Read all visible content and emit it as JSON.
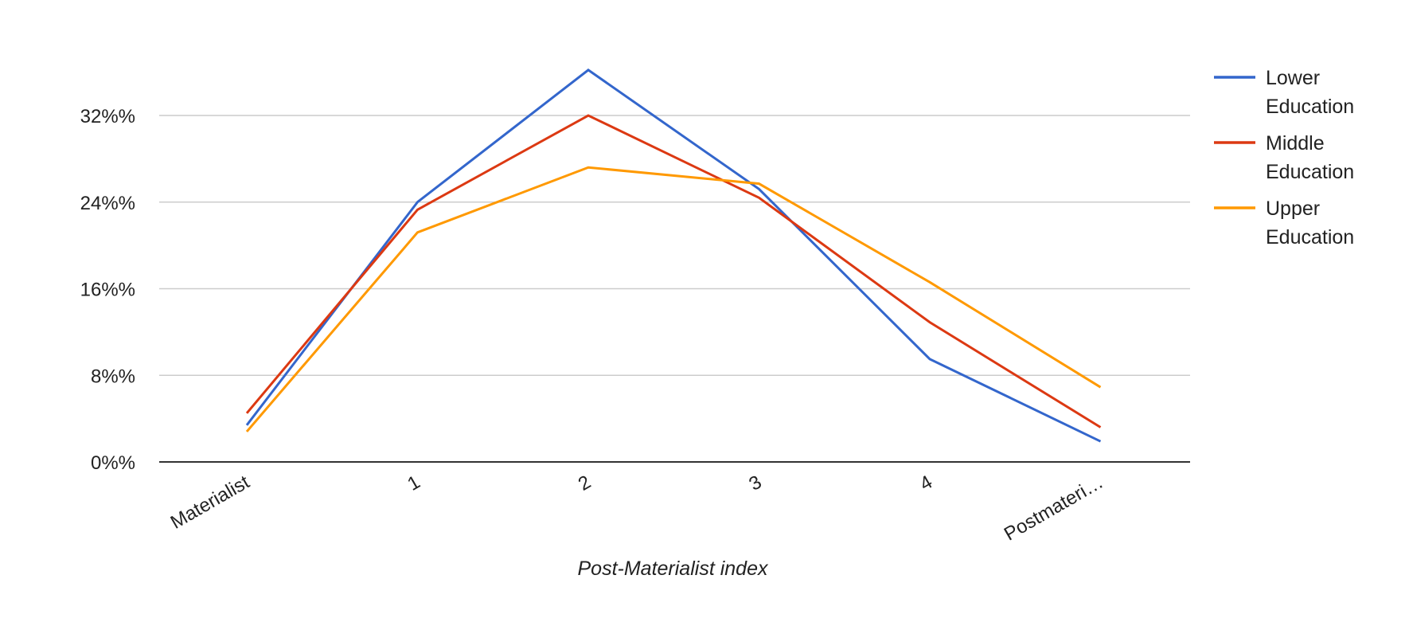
{
  "chart_data": {
    "type": "line",
    "title": "",
    "xlabel": "Post-Materialist index",
    "ylabel": "",
    "categories": [
      "Materialist",
      "1",
      "2",
      "3",
      "4",
      "Postmateri…"
    ],
    "y_ticks": [
      "0%%",
      "8%%",
      "16%%",
      "24%%",
      "32%%"
    ],
    "ylim": [
      0,
      36
    ],
    "grid": true,
    "legend_position": "right",
    "series": [
      {
        "name": "Lower Education",
        "color": "#3366cc",
        "values": [
          3.4,
          24.0,
          36.2,
          25.2,
          9.5,
          1.9
        ]
      },
      {
        "name": "Middle Education",
        "color": "#dc3912",
        "values": [
          4.5,
          23.3,
          32.0,
          24.4,
          12.9,
          3.2
        ]
      },
      {
        "name": "Upper Education",
        "color": "#ff9900",
        "values": [
          2.8,
          21.2,
          27.2,
          25.7,
          16.6,
          6.9
        ]
      }
    ]
  }
}
